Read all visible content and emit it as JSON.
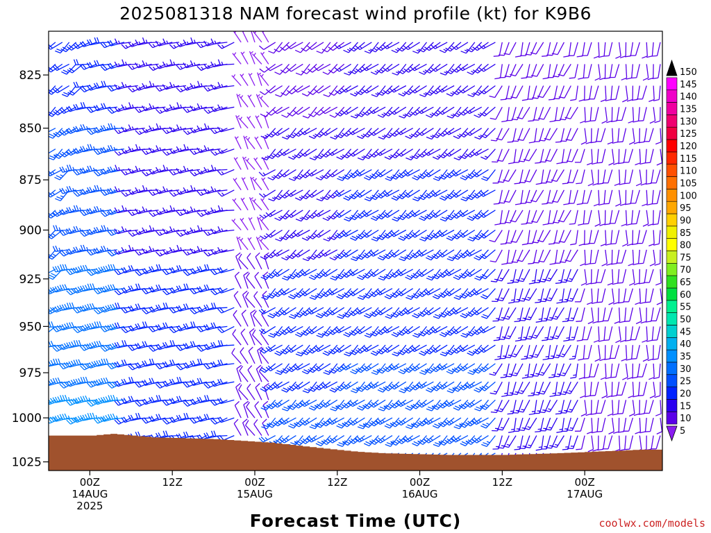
{
  "chart_data": {
    "type": "wind-profile",
    "title": "2025081318 NAM forecast wind profile (kt) for K9B6",
    "xlabel": "Forecast Time (UTC)",
    "ylabel": "",
    "watermark": "coolwx.com/models",
    "y_axis": {
      "scale": "pressure (hPa)",
      "ticks": [
        825,
        850,
        875,
        900,
        925,
        950,
        975,
        1000,
        1025
      ],
      "range": [
        805,
        1030
      ],
      "reversed": true
    },
    "x_axis": {
      "range_hours": [
        -6,
        72
      ],
      "ticks": [
        {
          "hour": 0,
          "line1": "00Z",
          "line2": "14AUG",
          "line3": "2025"
        },
        {
          "hour": 12,
          "line1": "12Z",
          "line2": "",
          "line3": ""
        },
        {
          "hour": 24,
          "line1": "00Z",
          "line2": "15AUG",
          "line3": ""
        },
        {
          "hour": 36,
          "line1": "12Z",
          "line2": "",
          "line3": ""
        },
        {
          "hour": 48,
          "line1": "00Z",
          "line2": "16AUG",
          "line3": ""
        },
        {
          "hour": 60,
          "line1": "12Z",
          "line2": "",
          "line3": ""
        },
        {
          "hour": 72,
          "line1": "00Z",
          "line2": "17AUG",
          "line3": ""
        }
      ]
    },
    "levels_hpa": [
      810,
      820,
      830,
      840,
      850,
      860,
      870,
      880,
      890,
      900,
      910,
      920,
      930,
      940,
      950,
      960,
      970,
      980,
      990,
      1000,
      1010,
      1020
    ],
    "time_hours": [
      -6,
      -5,
      -4,
      -3,
      -2,
      -1,
      0,
      1,
      2,
      3,
      4,
      5,
      6,
      7,
      8,
      9,
      10,
      11,
      12,
      13,
      14,
      15,
      16,
      17,
      18,
      19,
      20,
      21,
      22,
      23,
      24,
      25,
      26,
      27,
      28,
      29,
      30,
      31,
      32,
      33,
      34,
      35,
      36,
      37,
      38,
      39,
      40,
      41,
      42,
      43,
      44,
      45,
      46,
      47,
      48,
      49,
      50,
      51,
      52,
      53,
      54,
      55,
      56,
      57,
      58,
      59,
      60,
      61,
      62,
      63,
      64,
      65,
      66,
      67,
      68,
      69,
      70,
      71,
      72,
      73,
      74,
      75,
      76,
      77,
      78,
      79,
      80,
      81,
      82,
      83
    ],
    "surface_pressure": [
      {
        "hour": -6,
        "hpa": 1010
      },
      {
        "hour": 0,
        "hpa": 1010
      },
      {
        "hour": 3,
        "hpa": 1009
      },
      {
        "hour": 9,
        "hpa": 1011
      },
      {
        "hour": 18,
        "hpa": 1012
      },
      {
        "hour": 26,
        "hpa": 1014
      },
      {
        "hour": 33,
        "hpa": 1017
      },
      {
        "hour": 38,
        "hpa": 1019
      },
      {
        "hour": 42,
        "hpa": 1020
      },
      {
        "hour": 52,
        "hpa": 1021
      },
      {
        "hour": 60,
        "hpa": 1021
      },
      {
        "hour": 68,
        "hpa": 1020
      },
      {
        "hour": 74,
        "hpa": 1019
      },
      {
        "hour": 80,
        "hpa": 1018
      },
      {
        "hour": 83,
        "hpa": 1018
      }
    ],
    "wind_regimes": [
      {
        "hours": [
          -6,
          6
        ],
        "dir_deg": 255,
        "kt_top": 20,
        "kt_bottom": 35
      },
      {
        "hours": [
          6,
          22
        ],
        "dir_deg": 255,
        "kt_top": 15,
        "kt_bottom": 20
      },
      {
        "hours": [
          22,
          27
        ],
        "dir_deg": 330,
        "kt_top": 5,
        "kt_bottom": 10
      },
      {
        "hours": [
          27,
          38
        ],
        "dir_deg": 230,
        "kt_top": 10,
        "kt_bottom": 25
      },
      {
        "hours": [
          38,
          60
        ],
        "dir_deg": 230,
        "kt_top": 15,
        "kt_bottom": 25
      },
      {
        "hours": [
          60,
          72
        ],
        "dir_deg": 200,
        "kt_top": 10,
        "kt_bottom": 15
      },
      {
        "hours": [
          72,
          83
        ],
        "dir_deg": 185,
        "kt_top": 10,
        "kt_bottom": 10
      }
    ],
    "colorbar": {
      "levels": [
        5,
        10,
        15,
        20,
        25,
        30,
        35,
        40,
        45,
        50,
        55,
        60,
        65,
        70,
        75,
        80,
        85,
        90,
        95,
        100,
        105,
        110,
        115,
        120,
        125,
        130,
        135,
        140,
        145,
        150
      ],
      "colors": [
        "#8a1cf0",
        "#5a00e8",
        "#2a00f0",
        "#0022ff",
        "#0050ff",
        "#0070ff",
        "#0090ff",
        "#00b0f0",
        "#00d0d0",
        "#00e8b0",
        "#00f090",
        "#00e040",
        "#30e020",
        "#80ee20",
        "#c8f020",
        "#ffff00",
        "#f0f000",
        "#ffd000",
        "#ffa800",
        "#ff9000",
        "#ff7000",
        "#ff5000",
        "#ff2800",
        "#ff0000",
        "#f00040",
        "#f00070",
        "#f000a0",
        "#f000c8",
        "#ff00ff",
        "#000000"
      ]
    },
    "ground_color": "#a0522d"
  }
}
